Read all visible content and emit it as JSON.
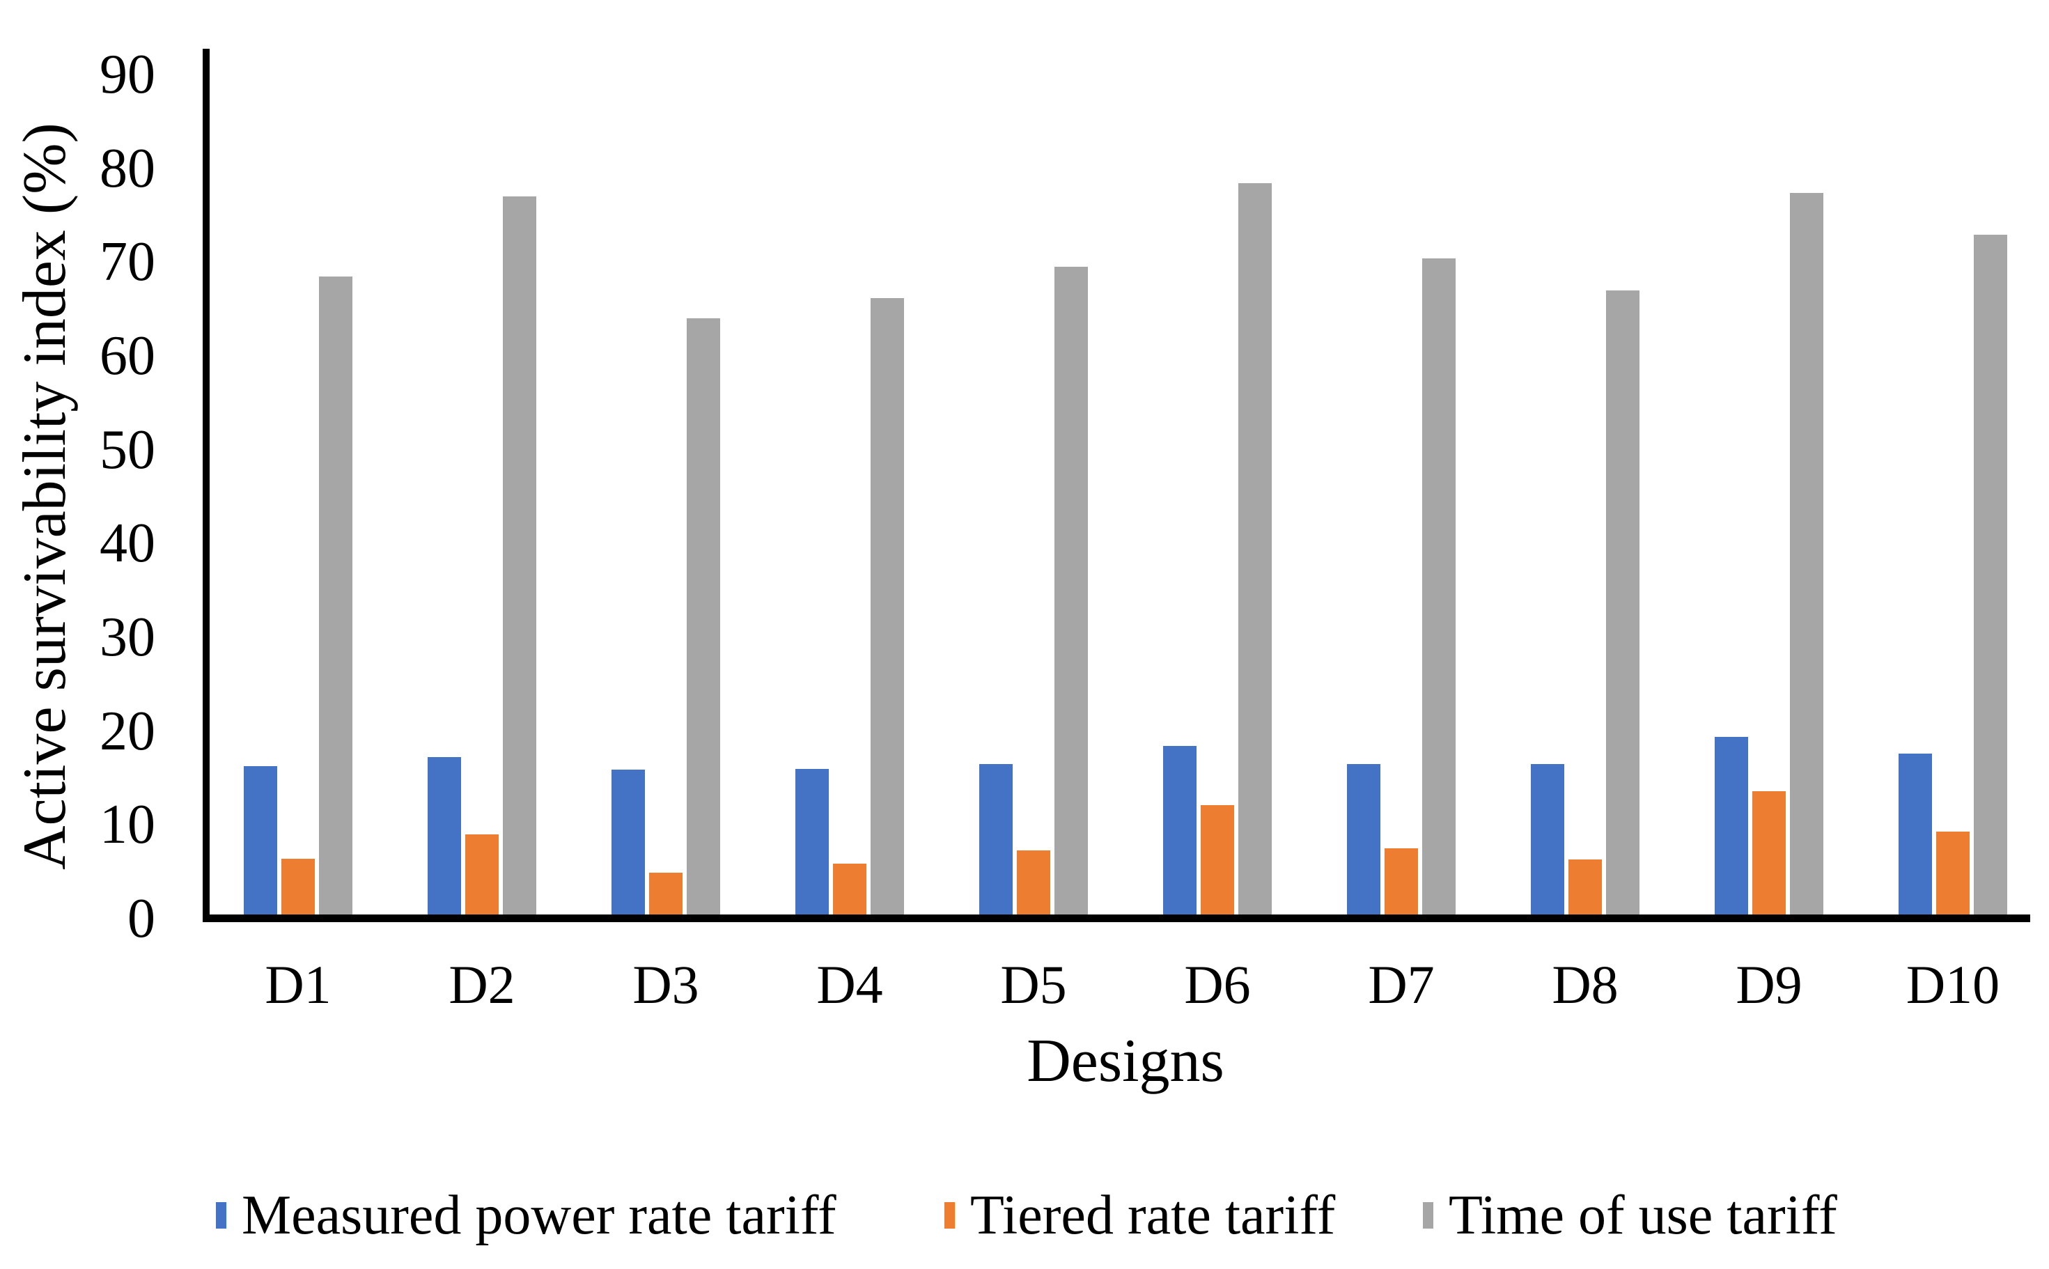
{
  "chart_data": {
    "type": "bar",
    "title": "",
    "xlabel": "Designs",
    "ylabel": "Active survivability index (%)",
    "ylim": [
      0,
      90
    ],
    "yticks": [
      90,
      80,
      70,
      60,
      50,
      40,
      30,
      20,
      10,
      0
    ],
    "grid": false,
    "legend_position": "bottom",
    "axis_color": "#000000",
    "background_color": "#ffffff",
    "categories": [
      "D1",
      "D2",
      "D3",
      "D4",
      "D5",
      "D6",
      "D7",
      "D8",
      "D9",
      "D10"
    ],
    "series": [
      {
        "name": "Measured power rate tariff",
        "color": "#4472C4",
        "values": [
          16.3,
          17.2,
          15.9,
          16.0,
          16.5,
          18.4,
          16.5,
          16.5,
          19.4,
          17.6
        ]
      },
      {
        "name": "Tiered rate tariff",
        "color": "#ED7D31",
        "values": [
          6.4,
          9.0,
          4.9,
          5.9,
          7.3,
          12.1,
          7.5,
          6.3,
          13.6,
          9.3
        ]
      },
      {
        "name": "Time of use tariff",
        "color": "#A6A6A6",
        "values": [
          68.5,
          77.0,
          64.0,
          66.2,
          69.5,
          78.4,
          70.4,
          67.0,
          77.4,
          72.9
        ]
      }
    ]
  }
}
